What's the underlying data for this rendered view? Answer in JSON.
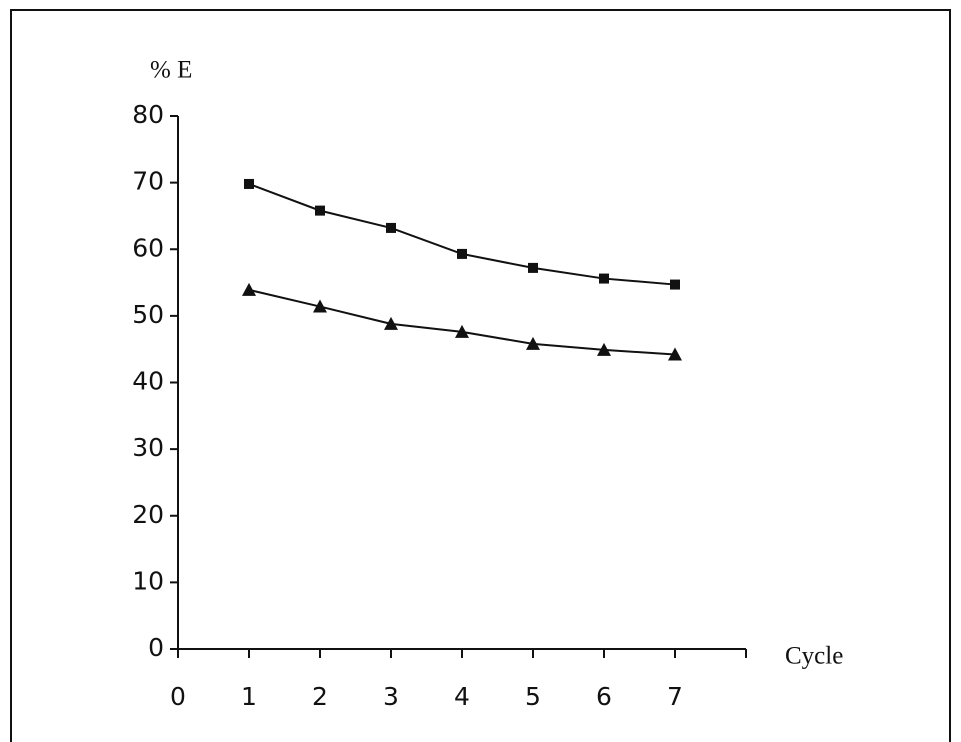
{
  "chart_data": {
    "type": "line",
    "ylabel": "% E",
    "xlabel": "Cycle",
    "x": [
      1,
      2,
      3,
      4,
      5,
      6,
      7
    ],
    "series": [
      {
        "marker": "square",
        "color": "#111111",
        "values": [
          69.8,
          65.8,
          63.2,
          59.3,
          57.2,
          55.6,
          54.7
        ]
      },
      {
        "marker": "triangle",
        "color": "#111111",
        "values": [
          53.9,
          51.4,
          48.8,
          47.6,
          45.8,
          44.9,
          44.2
        ]
      }
    ],
    "xlim": [
      0,
      8
    ],
    "xticks": [
      0,
      1,
      2,
      3,
      4,
      5,
      6,
      7
    ],
    "ylim": [
      0,
      80
    ],
    "yticks": [
      0,
      10,
      20,
      30,
      40,
      50,
      60,
      70,
      80
    ],
    "grid": false
  }
}
